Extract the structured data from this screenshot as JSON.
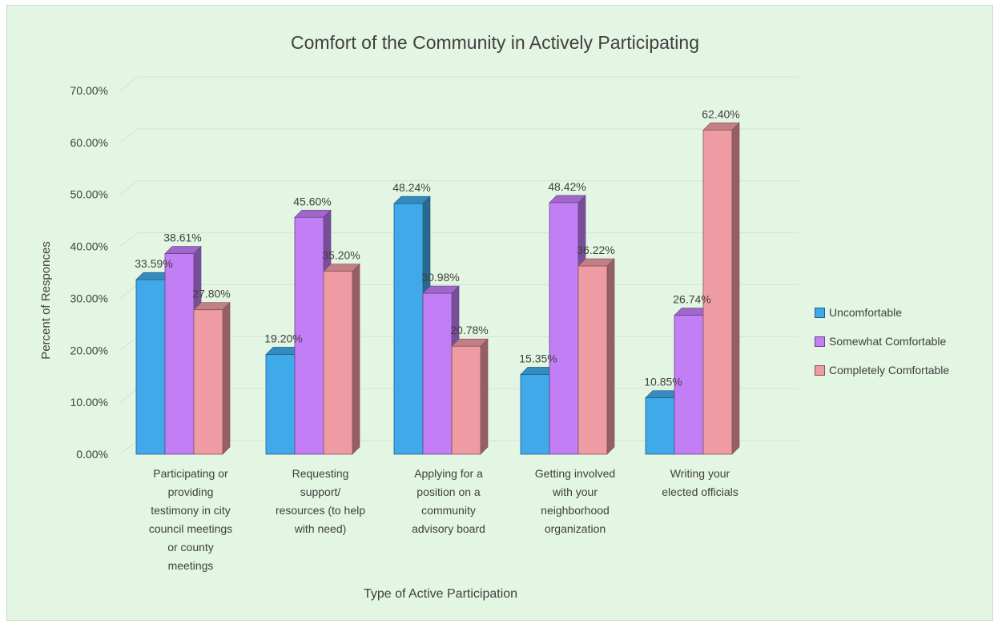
{
  "chart_data": {
    "type": "bar",
    "title": "Comfort of the Community in Actively Participating",
    "xlabel": "Type of Active Participation",
    "ylabel": "Percent of Responces",
    "ylim": [
      0,
      70
    ],
    "yticks": [
      "0.00%",
      "10.00%",
      "20.00%",
      "30.00%",
      "40.00%",
      "50.00%",
      "60.00%",
      "70.00%"
    ],
    "grid": true,
    "legend_position": "right",
    "categories": [
      [
        "Participating or",
        "providing",
        "testimony in city",
        "council meetings",
        "or county",
        "meetings"
      ],
      [
        "Requesting",
        "support/",
        "resources (to help",
        "with need)"
      ],
      [
        "Applying for a",
        "position on a",
        "community",
        "advisory board"
      ],
      [
        "Getting involved",
        "with your",
        "neighborhood",
        "organization"
      ],
      [
        "Writing your",
        "elected officials"
      ]
    ],
    "series": [
      {
        "name": "Uncomfortable",
        "color": "#3fa9ea",
        "values": [
          33.59,
          19.2,
          48.24,
          15.35,
          10.85
        ],
        "labels": [
          "33.59%",
          "19.20%",
          "48.24%",
          "15.35%",
          "10.85%"
        ]
      },
      {
        "name": "Somewhat Comfortable",
        "color": "#c27ef5",
        "values": [
          38.61,
          45.6,
          30.98,
          48.42,
          26.74
        ],
        "labels": [
          "38.61%",
          "45.60%",
          "30.98%",
          "48.42%",
          "26.74%"
        ]
      },
      {
        "name": "Completely Comfortable",
        "color": "#ee9ba3",
        "values": [
          27.8,
          35.2,
          20.78,
          36.22,
          62.4
        ],
        "labels": [
          "27.80%",
          "35.20%",
          "20.78%",
          "36.22%",
          "62.40%"
        ]
      }
    ]
  }
}
